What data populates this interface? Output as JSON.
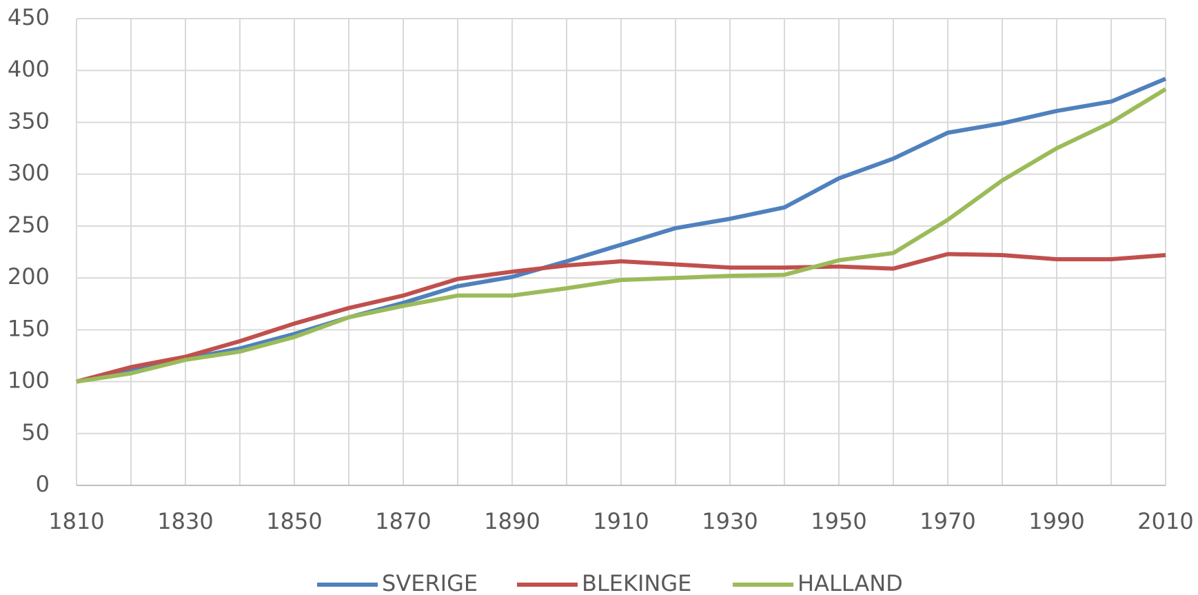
{
  "chart_data": {
    "type": "line",
    "x": [
      1810,
      1820,
      1830,
      1840,
      1850,
      1860,
      1870,
      1880,
      1890,
      1900,
      1910,
      1920,
      1930,
      1940,
      1950,
      1960,
      1970,
      1980,
      1990,
      2000,
      2010
    ],
    "series": [
      {
        "name": "SVERIGE",
        "color": "#4f81bd",
        "values": [
          100,
          112,
          122,
          132,
          146,
          162,
          176,
          192,
          201,
          216,
          232,
          248,
          257,
          268,
          296,
          315,
          340,
          349,
          361,
          370,
          392
        ]
      },
      {
        "name": "BLEKINGE",
        "color": "#c0504d",
        "values": [
          100,
          114,
          124,
          139,
          156,
          171,
          183,
          199,
          206,
          212,
          216,
          213,
          210,
          210,
          211,
          209,
          223,
          222,
          218,
          218,
          222
        ]
      },
      {
        "name": "HALLAND",
        "color": "#9bbb59",
        "values": [
          100,
          108,
          121,
          129,
          143,
          162,
          173,
          183,
          183,
          190,
          198,
          200,
          202,
          203,
          217,
          224,
          256,
          294,
          325,
          350,
          382
        ]
      }
    ],
    "xlim": [
      1810,
      2010
    ],
    "xticks": [
      1810,
      1830,
      1850,
      1870,
      1890,
      1910,
      1930,
      1950,
      1970,
      1990,
      2010
    ],
    "ylim": [
      0,
      450
    ],
    "yticks": [
      0,
      50,
      100,
      150,
      200,
      250,
      300,
      350,
      400,
      450
    ],
    "grid": true,
    "legend": "bottom"
  }
}
